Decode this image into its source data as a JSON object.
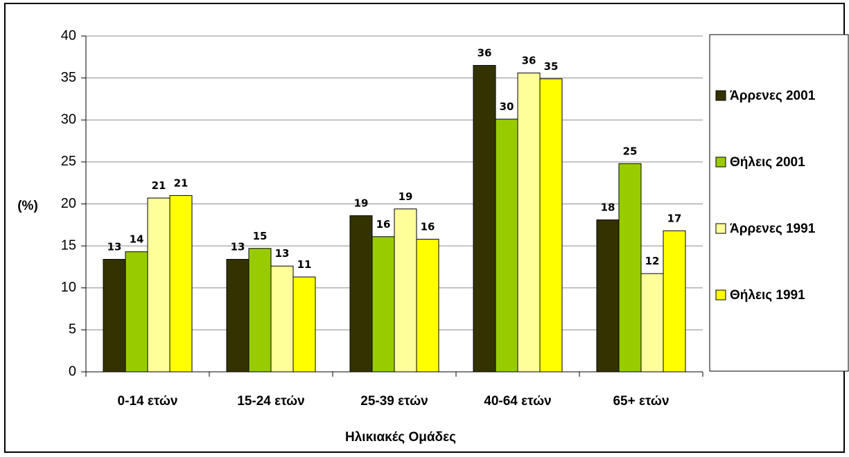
{
  "chart_data": {
    "type": "bar",
    "categories": [
      "0-14 ετών",
      "15-24 ετών",
      "25-39 ετών",
      "40-64 ετών",
      "65+ ετών"
    ],
    "series": [
      {
        "name": "Άρρενες 2001",
        "color": "#333300",
        "values": [
          13.4,
          13.4,
          18.6,
          36.5,
          18.1
        ],
        "labels": [
          "13",
          "13",
          "19",
          "36",
          "18"
        ]
      },
      {
        "name": "Θήλεις 2001",
        "color": "#99cc00",
        "values": [
          14.3,
          14.7,
          16.1,
          30.1,
          24.8
        ],
        "labels": [
          "14",
          "15",
          "16",
          "30",
          "25"
        ]
      },
      {
        "name": "Άρρενες 1991",
        "color": "#ffff99",
        "values": [
          20.7,
          12.6,
          19.4,
          35.6,
          11.7
        ],
        "labels": [
          "21",
          "13",
          "19",
          "36",
          "12"
        ]
      },
      {
        "name": "Θήλεις 1991",
        "color": "#ffff00",
        "values": [
          21.0,
          11.3,
          15.8,
          34.9,
          16.8
        ],
        "labels": [
          "21",
          "11",
          "16",
          "35",
          "17"
        ]
      }
    ],
    "yticks": [
      "0",
      "5",
      "10",
      "15",
      "20",
      "25",
      "30",
      "35",
      "40"
    ],
    "ylim": [
      0,
      40
    ],
    "ylabel": "(%)",
    "xlabel": "Ηλικιακές Ομάδες",
    "grid": true,
    "legend_position": "right"
  }
}
